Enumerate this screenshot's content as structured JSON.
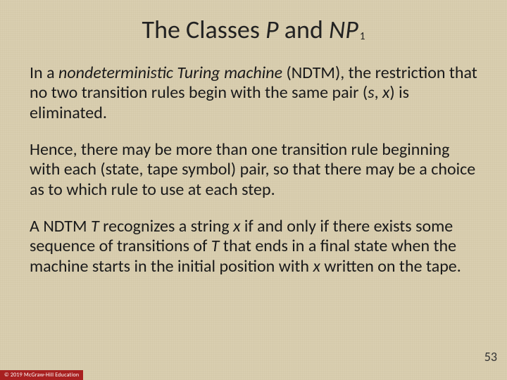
{
  "title": {
    "pre": "The Classes ",
    "p": "P",
    "mid": " and ",
    "np": "NP",
    "sub": "1"
  },
  "paragraphs": {
    "p1": {
      "t1": "In a ",
      "i1": "nondeterministic Turing machine",
      "t2": " (NDTM), the restriction that no two transition rules begin with the same pair (",
      "i2": "s",
      "t3": ", ",
      "i3": "x",
      "t4": ") is eliminated."
    },
    "p2": {
      "t1": "Hence, there may be more than one transition rule beginning with each (state, tape symbol) pair, so that there may be a choice as to which rule to use at each step."
    },
    "p3": {
      "t1": "A NDTM ",
      "i1": "T",
      "t2": " recognizes a string ",
      "i2": "x",
      "t3": " if and only if there exists some sequence of transitions of ",
      "i3": "T",
      "t4": " that ends in a final state when the machine starts in the initial position with ",
      "i4": "x",
      "t5": " written on the tape."
    }
  },
  "page_number": "53",
  "copyright": "© 2019 McGraw-Hill Education"
}
